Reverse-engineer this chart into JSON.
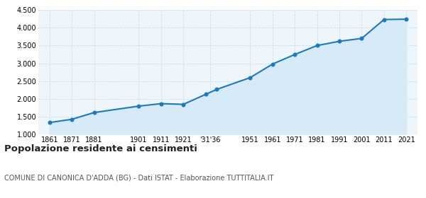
{
  "years": [
    1861,
    1871,
    1881,
    1901,
    1911,
    1921,
    1931,
    1936,
    1951,
    1961,
    1971,
    1981,
    1991,
    2001,
    2011,
    2021
  ],
  "population": [
    1340,
    1430,
    1620,
    1800,
    1870,
    1850,
    2130,
    2270,
    2600,
    2980,
    3250,
    3500,
    3620,
    3700,
    4230,
    4240
  ],
  "y_ticks": [
    1000,
    1500,
    2000,
    2500,
    3000,
    3500,
    4000,
    4500
  ],
  "ylim": [
    1000,
    4500
  ],
  "xlim": [
    1856,
    2026
  ],
  "line_color": "#1a7abf",
  "fill_color": "#d6eaf8",
  "marker_color": "#1a7abf",
  "grid_color": "#c8dff0",
  "background_color": "#eef6fc",
  "title": "Popolazione residente ai censimenti",
  "subtitle": "COMUNE DI CANONICA D'ADDA (BG) - Dati ISTAT - Elaborazione TUTTITALIA.IT",
  "title_fontsize": 9.5,
  "subtitle_fontsize": 7,
  "tick_fontsize": 7,
  "shown_x_positions": [
    1861,
    1871,
    1881,
    1901,
    1911,
    1921,
    1933,
    1951,
    1961,
    1971,
    1981,
    1991,
    2001,
    2011,
    2021
  ],
  "shown_x_labels": [
    "1861",
    "1871",
    "1881",
    "1901",
    "1911",
    "1921",
    "'31'36",
    "1951",
    "1961",
    "1971",
    "1981",
    "1991",
    "2001",
    "2011",
    "2021"
  ]
}
